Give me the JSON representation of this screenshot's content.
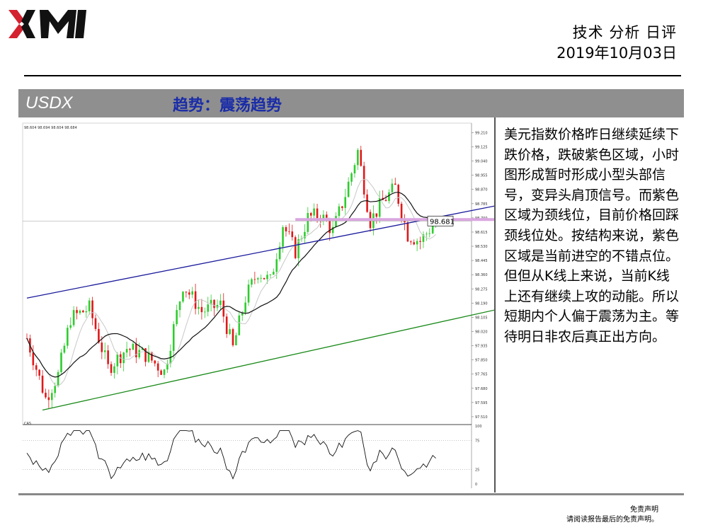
{
  "brand": {
    "name": "XM",
    "color_red": "#d4202f",
    "color_black": "#111111"
  },
  "header": {
    "title": "技术 分析 日评",
    "date": "2019年10月03日"
  },
  "section": {
    "symbol": "USDX",
    "trend": "趋势：震荡趋势"
  },
  "analysis": "美元指数价格昨日继续延续下跌价格，跌破紫色区域，小时图形成暂时形成小型头部信号，变异头肩顶信号。而紫色区域为颈线位，目前价格回踩颈线位处。按结构来说，紫色区域是当前进空的不错点位。但但从K线上来说，当前K线上还有继续上攻的动能。所以短期内个人偏于震荡为主。等待明日非农后真正出方向。",
  "disclaimer": {
    "title": "免责声明",
    "text": "请阅读报告最后的免责声明。"
  },
  "chart_data": {
    "type": "candlestick",
    "info_line": "98.604 98.694 98.604 98.684",
    "price_ticks": [
      "99.210",
      "99.125",
      "99.040",
      "98.955",
      "98.870",
      "98.785",
      "98.700",
      "98.615",
      "98.530",
      "98.445",
      "98.360",
      "98.275",
      "98.190",
      "98.105",
      "98.020",
      "97.935",
      "97.850",
      "97.765",
      "97.680",
      "97.595",
      "97.510"
    ],
    "ylim": [
      97.48,
      99.25
    ],
    "current_price": 98.681,
    "neckline": 98.69,
    "channel_upper": [
      [
        0,
        98.22
      ],
      [
        155,
        98.79
      ]
    ],
    "channel_lower": [
      [
        5,
        97.55
      ],
      [
        155,
        98.17
      ]
    ],
    "ma_fast_color": "#c8c8c8",
    "ma_slow_color": "#111111",
    "up_color": "#2ecc2e",
    "down_color": "#e0181a",
    "neckline_color": "#d9a6e0",
    "upper_line_color": "#1a1a9c",
    "lower_line_color": "#1a8a1a",
    "indicator_label": "CAS",
    "indicator_ticks": [
      "100",
      "75",
      "25",
      "0"
    ],
    "indicator_ylim": [
      0,
      100
    ],
    "n_bars": 132
  }
}
